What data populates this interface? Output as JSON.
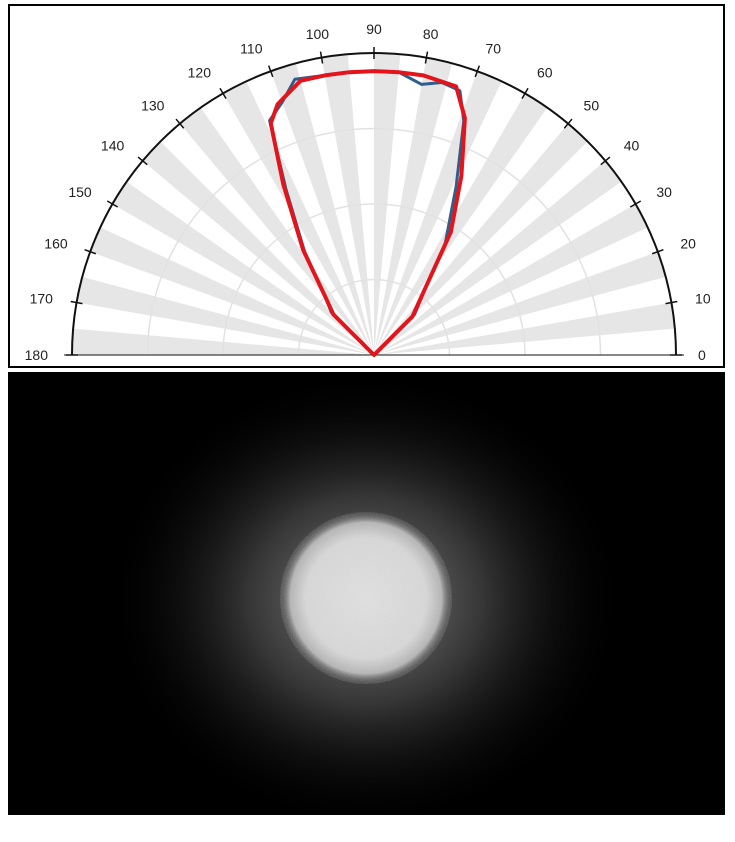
{
  "chart_data": [
    {
      "type": "polar",
      "title": "",
      "angular_range_deg": [
        0,
        180
      ],
      "angular_tick_labels": [
        "0",
        "10",
        "20",
        "30",
        "40",
        "50",
        "60",
        "70",
        "80",
        "90",
        "100",
        "110",
        "120",
        "130",
        "140",
        "150",
        "160",
        "170",
        "180"
      ],
      "radial_grid_rings": 4,
      "radial_max": 1.0,
      "grid": true,
      "alternating_sector_shading": "#e6e6e6",
      "series": [
        {
          "color": "#2e5f8a",
          "points": [
            {
              "angle": 0,
              "r": 0.0
            },
            {
              "angle": 45,
              "r": 0.19
            },
            {
              "angle": 52,
              "r": 0.27
            },
            {
              "angle": 57,
              "r": 0.43
            },
            {
              "angle": 64,
              "r": 0.62
            },
            {
              "angle": 69,
              "r": 0.83
            },
            {
              "angle": 72,
              "r": 0.92
            },
            {
              "angle": 76,
              "r": 0.93
            },
            {
              "angle": 80,
              "r": 0.91
            },
            {
              "angle": 85,
              "r": 0.94
            },
            {
              "angle": 90,
              "r": 0.94
            },
            {
              "angle": 95,
              "r": 0.94
            },
            {
              "angle": 100,
              "r": 0.94
            },
            {
              "angle": 106,
              "r": 0.95
            },
            {
              "angle": 110,
              "r": 0.89
            },
            {
              "angle": 114,
              "r": 0.85
            },
            {
              "angle": 118,
              "r": 0.62
            },
            {
              "angle": 124,
              "r": 0.41
            },
            {
              "angle": 130,
              "r": 0.25
            },
            {
              "angle": 135,
              "r": 0.2
            },
            {
              "angle": 180,
              "r": 0.0
            }
          ]
        },
        {
          "color": "#e3141b",
          "points": [
            {
              "angle": 0,
              "r": 0.0
            },
            {
              "angle": 45,
              "r": 0.18
            },
            {
              "angle": 53,
              "r": 0.29
            },
            {
              "angle": 58,
              "r": 0.48
            },
            {
              "angle": 64,
              "r": 0.66
            },
            {
              "angle": 69,
              "r": 0.84
            },
            {
              "angle": 73,
              "r": 0.93
            },
            {
              "angle": 80,
              "r": 0.94
            },
            {
              "angle": 85,
              "r": 0.94
            },
            {
              "angle": 90,
              "r": 0.94
            },
            {
              "angle": 95,
              "r": 0.94
            },
            {
              "angle": 100,
              "r": 0.94
            },
            {
              "angle": 105,
              "r": 0.94
            },
            {
              "angle": 111,
              "r": 0.89
            },
            {
              "angle": 114,
              "r": 0.84
            },
            {
              "angle": 118,
              "r": 0.64
            },
            {
              "angle": 124,
              "r": 0.42
            },
            {
              "angle": 130,
              "r": 0.25
            },
            {
              "angle": 135,
              "r": 0.19
            },
            {
              "angle": 180,
              "r": 0.0
            }
          ]
        }
      ]
    },
    {
      "type": "image",
      "description_visual": "grayscale beam-spot intensity on black background",
      "background": "#000000",
      "spot_center_fraction": [
        0.5,
        0.51
      ],
      "spot_radius_x_fraction": 0.11,
      "spot_radius_y_fraction": 0.18
    }
  ]
}
